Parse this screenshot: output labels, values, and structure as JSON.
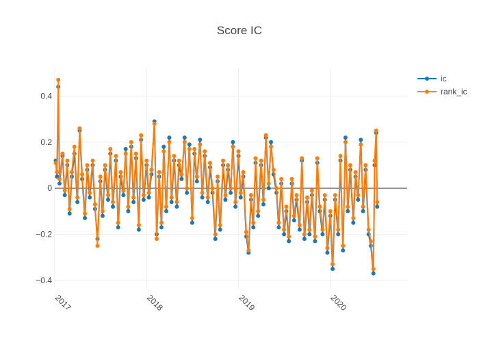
{
  "chart_data": {
    "type": "line",
    "title": "Score IC",
    "xlabel": "",
    "ylabel": "",
    "x_range": [
      "2017-01-01",
      "2020-11-01"
    ],
    "ylim": [
      -0.43,
      0.52
    ],
    "x_ticks": [
      {
        "value": "2017-01-01",
        "label": "2017"
      },
      {
        "value": "2018-01-01",
        "label": "2018"
      },
      {
        "value": "2019-01-01",
        "label": "2019"
      },
      {
        "value": "2020-01-01",
        "label": "2020"
      }
    ],
    "y_ticks": [
      {
        "value": 0.4,
        "label": "0.4"
      },
      {
        "value": 0.2,
        "label": "0.2"
      },
      {
        "value": 0,
        "label": "0"
      },
      {
        "value": -0.2,
        "label": "−0.2"
      },
      {
        "value": -0.4,
        "label": "−0.4"
      }
    ],
    "grid": true,
    "legend_position": "top-right",
    "series": [
      {
        "name": "ic",
        "color": "#1f77b4",
        "points": [
          [
            "2017-01-05",
            0.12
          ],
          [
            "2017-01-10",
            0.05
          ],
          [
            "2017-01-15",
            0.44
          ],
          [
            "2017-01-20",
            0.02
          ],
          [
            "2017-02-01",
            0.14
          ],
          [
            "2017-02-10",
            -0.03
          ],
          [
            "2017-02-20",
            0.1
          ],
          [
            "2017-03-01",
            -0.11
          ],
          [
            "2017-03-10",
            0.05
          ],
          [
            "2017-03-20",
            0.15
          ],
          [
            "2017-04-01",
            -0.06
          ],
          [
            "2017-04-10",
            0.25
          ],
          [
            "2017-04-20",
            0.04
          ],
          [
            "2017-05-01",
            -0.13
          ],
          [
            "2017-05-10",
            0.08
          ],
          [
            "2017-05-20",
            -0.04
          ],
          [
            "2017-06-01",
            0.1
          ],
          [
            "2017-06-10",
            -0.09
          ],
          [
            "2017-06-20",
            -0.22
          ],
          [
            "2017-07-01",
            0.03
          ],
          [
            "2017-07-10",
            -0.12
          ],
          [
            "2017-07-20",
            0.08
          ],
          [
            "2017-08-01",
            -0.05
          ],
          [
            "2017-08-10",
            0.15
          ],
          [
            "2017-08-20",
            -0.08
          ],
          [
            "2017-09-01",
            0.12
          ],
          [
            "2017-09-10",
            -0.17
          ],
          [
            "2017-09-20",
            0.05
          ],
          [
            "2017-10-01",
            -0.03
          ],
          [
            "2017-10-10",
            0.17
          ],
          [
            "2017-10-20",
            -0.1
          ],
          [
            "2017-11-01",
            0.18
          ],
          [
            "2017-11-10",
            -0.06
          ],
          [
            "2017-11-20",
            0.13
          ],
          [
            "2017-12-01",
            -0.18
          ],
          [
            "2017-12-10",
            0.21
          ],
          [
            "2017-12-20",
            -0.05
          ],
          [
            "2018-01-01",
            0.1
          ],
          [
            "2018-01-10",
            -0.04
          ],
          [
            "2018-01-20",
            0.06
          ],
          [
            "2018-02-01",
            0.29
          ],
          [
            "2018-02-10",
            -0.2
          ],
          [
            "2018-02-20",
            0.05
          ],
          [
            "2018-03-01",
            -0.17
          ],
          [
            "2018-03-10",
            0.18
          ],
          [
            "2018-03-20",
            -0.1
          ],
          [
            "2018-04-01",
            0.22
          ],
          [
            "2018-04-10",
            -0.06
          ],
          [
            "2018-04-20",
            0.12
          ],
          [
            "2018-05-01",
            -0.08
          ],
          [
            "2018-05-10",
            0.1
          ],
          [
            "2018-05-20",
            0.04
          ],
          [
            "2018-06-01",
            0.22
          ],
          [
            "2018-06-10",
            -0.02
          ],
          [
            "2018-06-20",
            0.19
          ],
          [
            "2018-07-01",
            -0.15
          ],
          [
            "2018-07-10",
            0.15
          ],
          [
            "2018-07-20",
            0.03
          ],
          [
            "2018-08-01",
            0.21
          ],
          [
            "2018-08-10",
            -0.04
          ],
          [
            "2018-08-20",
            0.14
          ],
          [
            "2018-09-01",
            -0.06
          ],
          [
            "2018-09-10",
            0.09
          ],
          [
            "2018-09-20",
            -0.02
          ],
          [
            "2018-10-01",
            -0.22
          ],
          [
            "2018-10-10",
            0.03
          ],
          [
            "2018-10-20",
            -0.18
          ],
          [
            "2018-11-01",
            0.1
          ],
          [
            "2018-11-10",
            -0.05
          ],
          [
            "2018-11-20",
            0.08
          ],
          [
            "2018-12-01",
            -0.02
          ],
          [
            "2018-12-10",
            0.2
          ],
          [
            "2018-12-20",
            -0.08
          ],
          [
            "2019-01-01",
            0.14
          ],
          [
            "2019-01-10",
            -0.04
          ],
          [
            "2019-01-20",
            0.05
          ],
          [
            "2019-02-01",
            -0.21
          ],
          [
            "2019-02-10",
            -0.28
          ],
          [
            "2019-02-20",
            -0.05
          ],
          [
            "2019-03-01",
            -0.17
          ],
          [
            "2019-03-10",
            0.11
          ],
          [
            "2019-03-20",
            -0.12
          ],
          [
            "2019-04-01",
            0.1
          ],
          [
            "2019-04-10",
            -0.07
          ],
          [
            "2019-04-20",
            0.22
          ],
          [
            "2019-05-01",
            0.0
          ],
          [
            "2019-05-10",
            0.2
          ],
          [
            "2019-05-20",
            0.06
          ],
          [
            "2019-06-01",
            -0.02
          ],
          [
            "2019-06-10",
            -0.17
          ],
          [
            "2019-06-20",
            0.02
          ],
          [
            "2019-07-01",
            -0.2
          ],
          [
            "2019-07-10",
            -0.1
          ],
          [
            "2019-07-20",
            -0.23
          ],
          [
            "2019-08-01",
            0.02
          ],
          [
            "2019-08-10",
            -0.14
          ],
          [
            "2019-08-20",
            -0.05
          ],
          [
            "2019-09-01",
            -0.18
          ],
          [
            "2019-09-10",
            0.12
          ],
          [
            "2019-09-20",
            -0.22
          ],
          [
            "2019-10-01",
            -0.06
          ],
          [
            "2019-10-10",
            -0.2
          ],
          [
            "2019-10-20",
            -0.03
          ],
          [
            "2019-11-01",
            -0.23
          ],
          [
            "2019-11-10",
            0.11
          ],
          [
            "2019-11-20",
            -0.1
          ],
          [
            "2019-12-01",
            -0.2
          ],
          [
            "2019-12-10",
            -0.05
          ],
          [
            "2019-12-20",
            -0.28
          ],
          [
            "2020-01-01",
            -0.12
          ],
          [
            "2020-01-10",
            -0.35
          ],
          [
            "2020-01-20",
            -0.05
          ],
          [
            "2020-02-01",
            -0.2
          ],
          [
            "2020-02-10",
            0.12
          ],
          [
            "2020-02-20",
            -0.27
          ],
          [
            "2020-03-01",
            0.22
          ],
          [
            "2020-03-10",
            -0.1
          ],
          [
            "2020-03-20",
            0.08
          ],
          [
            "2020-04-01",
            -0.15
          ],
          [
            "2020-04-10",
            0.05
          ],
          [
            "2020-04-20",
            -0.05
          ],
          [
            "2020-05-01",
            0.21
          ],
          [
            "2020-05-10",
            -0.1
          ],
          [
            "2020-05-20",
            0.08
          ],
          [
            "2020-06-01",
            -0.2
          ],
          [
            "2020-06-10",
            -0.25
          ],
          [
            "2020-06-20",
            -0.37
          ],
          [
            "2020-06-25",
            0.1
          ],
          [
            "2020-07-01",
            0.24
          ],
          [
            "2020-07-05",
            -0.08
          ]
        ]
      },
      {
        "name": "rank_ic",
        "color": "#ff7f0e",
        "points": [
          [
            "2017-01-05",
            0.11
          ],
          [
            "2017-01-10",
            0.07
          ],
          [
            "2017-01-15",
            0.47
          ],
          [
            "2017-01-20",
            0.04
          ],
          [
            "2017-02-01",
            0.15
          ],
          [
            "2017-02-10",
            -0.01
          ],
          [
            "2017-02-20",
            0.12
          ],
          [
            "2017-03-01",
            -0.09
          ],
          [
            "2017-03-10",
            0.07
          ],
          [
            "2017-03-20",
            0.18
          ],
          [
            "2017-04-01",
            -0.04
          ],
          [
            "2017-04-10",
            0.26
          ],
          [
            "2017-04-20",
            0.06
          ],
          [
            "2017-05-01",
            -0.11
          ],
          [
            "2017-05-10",
            0.1
          ],
          [
            "2017-05-20",
            -0.02
          ],
          [
            "2017-06-01",
            0.12
          ],
          [
            "2017-06-10",
            -0.07
          ],
          [
            "2017-06-20",
            -0.25
          ],
          [
            "2017-07-01",
            0.05
          ],
          [
            "2017-07-10",
            -0.1
          ],
          [
            "2017-07-20",
            0.1
          ],
          [
            "2017-08-01",
            -0.03
          ],
          [
            "2017-08-10",
            0.17
          ],
          [
            "2017-08-20",
            -0.06
          ],
          [
            "2017-09-01",
            0.14
          ],
          [
            "2017-09-10",
            -0.15
          ],
          [
            "2017-09-20",
            0.07
          ],
          [
            "2017-10-01",
            -0.01
          ],
          [
            "2017-10-10",
            0.15
          ],
          [
            "2017-10-20",
            -0.08
          ],
          [
            "2017-11-01",
            0.2
          ],
          [
            "2017-11-10",
            -0.04
          ],
          [
            "2017-11-20",
            0.15
          ],
          [
            "2017-12-01",
            -0.16
          ],
          [
            "2017-12-10",
            0.23
          ],
          [
            "2017-12-20",
            -0.03
          ],
          [
            "2018-01-01",
            0.12
          ],
          [
            "2018-01-10",
            -0.02
          ],
          [
            "2018-01-20",
            0.08
          ],
          [
            "2018-02-01",
            0.28
          ],
          [
            "2018-02-10",
            -0.22
          ],
          [
            "2018-02-20",
            0.07
          ],
          [
            "2018-03-01",
            -0.15
          ],
          [
            "2018-03-10",
            0.16
          ],
          [
            "2018-03-20",
            -0.08
          ],
          [
            "2018-04-01",
            0.2
          ],
          [
            "2018-04-10",
            -0.04
          ],
          [
            "2018-04-20",
            0.14
          ],
          [
            "2018-05-01",
            -0.06
          ],
          [
            "2018-05-10",
            0.12
          ],
          [
            "2018-05-20",
            0.06
          ],
          [
            "2018-06-01",
            0.2
          ],
          [
            "2018-06-10",
            0.0
          ],
          [
            "2018-06-20",
            0.17
          ],
          [
            "2018-07-01",
            -0.13
          ],
          [
            "2018-07-10",
            0.17
          ],
          [
            "2018-07-20",
            0.05
          ],
          [
            "2018-08-01",
            0.19
          ],
          [
            "2018-08-10",
            -0.02
          ],
          [
            "2018-08-20",
            0.16
          ],
          [
            "2018-09-01",
            -0.04
          ],
          [
            "2018-09-10",
            0.11
          ],
          [
            "2018-09-20",
            0.0
          ],
          [
            "2018-10-01",
            -0.2
          ],
          [
            "2018-10-10",
            0.05
          ],
          [
            "2018-10-20",
            -0.16
          ],
          [
            "2018-11-01",
            0.12
          ],
          [
            "2018-11-10",
            -0.03
          ],
          [
            "2018-11-20",
            0.1
          ],
          [
            "2018-12-01",
            0.0
          ],
          [
            "2018-12-10",
            0.18
          ],
          [
            "2018-12-20",
            -0.06
          ],
          [
            "2019-01-01",
            0.16
          ],
          [
            "2019-01-10",
            -0.02
          ],
          [
            "2019-01-20",
            0.07
          ],
          [
            "2019-02-01",
            -0.19
          ],
          [
            "2019-02-10",
            -0.27
          ],
          [
            "2019-02-20",
            -0.03
          ],
          [
            "2019-03-01",
            -0.15
          ],
          [
            "2019-03-10",
            0.13
          ],
          [
            "2019-03-20",
            -0.1
          ],
          [
            "2019-04-01",
            0.12
          ],
          [
            "2019-04-10",
            -0.05
          ],
          [
            "2019-04-20",
            0.23
          ],
          [
            "2019-05-01",
            0.02
          ],
          [
            "2019-05-10",
            0.18
          ],
          [
            "2019-05-20",
            0.08
          ],
          [
            "2019-06-01",
            0.0
          ],
          [
            "2019-06-10",
            -0.15
          ],
          [
            "2019-06-20",
            0.04
          ],
          [
            "2019-07-01",
            -0.18
          ],
          [
            "2019-07-10",
            -0.08
          ],
          [
            "2019-07-20",
            -0.21
          ],
          [
            "2019-08-01",
            0.04
          ],
          [
            "2019-08-10",
            -0.12
          ],
          [
            "2019-08-20",
            -0.03
          ],
          [
            "2019-09-01",
            -0.16
          ],
          [
            "2019-09-10",
            0.13
          ],
          [
            "2019-09-20",
            -0.2
          ],
          [
            "2019-10-01",
            -0.04
          ],
          [
            "2019-10-10",
            -0.18
          ],
          [
            "2019-10-20",
            -0.01
          ],
          [
            "2019-11-01",
            -0.21
          ],
          [
            "2019-11-10",
            0.13
          ],
          [
            "2019-11-20",
            -0.08
          ],
          [
            "2019-12-01",
            -0.18
          ],
          [
            "2019-12-10",
            -0.03
          ],
          [
            "2019-12-20",
            -0.26
          ],
          [
            "2020-01-01",
            -0.1
          ],
          [
            "2020-01-10",
            -0.33
          ],
          [
            "2020-01-20",
            -0.03
          ],
          [
            "2020-02-01",
            -0.18
          ],
          [
            "2020-02-10",
            0.14
          ],
          [
            "2020-02-20",
            -0.25
          ],
          [
            "2020-03-01",
            0.2
          ],
          [
            "2020-03-10",
            -0.08
          ],
          [
            "2020-03-20",
            0.1
          ],
          [
            "2020-04-01",
            -0.13
          ],
          [
            "2020-04-10",
            0.07
          ],
          [
            "2020-04-20",
            -0.03
          ],
          [
            "2020-05-01",
            0.19
          ],
          [
            "2020-05-10",
            -0.08
          ],
          [
            "2020-05-20",
            0.1
          ],
          [
            "2020-06-01",
            -0.18
          ],
          [
            "2020-06-10",
            -0.23
          ],
          [
            "2020-06-20",
            -0.35
          ],
          [
            "2020-06-25",
            0.12
          ],
          [
            "2020-07-01",
            0.25
          ],
          [
            "2020-07-05",
            -0.06
          ]
        ]
      }
    ]
  }
}
